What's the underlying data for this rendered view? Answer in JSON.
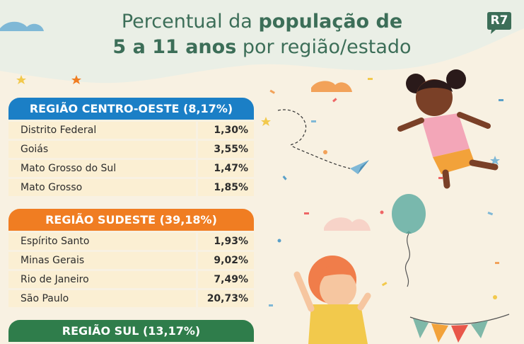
{
  "title": {
    "line1_regular": "Percentual da ",
    "line1_bold": "população de",
    "line2_bold": "5 a 11 anos",
    "line2_regular": " por região/estado"
  },
  "logo": {
    "text": "R7"
  },
  "colors": {
    "centro_oeste": "#1b7fc6",
    "sudeste": "#f07d22",
    "sul": "#2f7d4b",
    "title": "#3c6e58",
    "row_bg": "#fbefd3"
  },
  "regions": [
    {
      "title": "REGIÃO CENTRO-OESTE (8,17%)",
      "rows": [
        {
          "state": "Distrito Federal",
          "value": "1,30%"
        },
        {
          "state": "Goiás",
          "value": "3,55%"
        },
        {
          "state": "Mato Grosso do Sul",
          "value": "1,47%"
        },
        {
          "state": "Mato Grosso",
          "value": "1,85%"
        }
      ]
    },
    {
      "title": "REGIÃO SUDESTE (39,18%)",
      "rows": [
        {
          "state": "Espírito Santo",
          "value": "1,93%"
        },
        {
          "state": "Minas Gerais",
          "value": "9,02%"
        },
        {
          "state": "Rio de Janeiro",
          "value": "7,49%"
        },
        {
          "state": "São Paulo",
          "value": "20,73%"
        }
      ]
    },
    {
      "title": "REGIÃO SUL (13,17%)",
      "rows": []
    }
  ]
}
